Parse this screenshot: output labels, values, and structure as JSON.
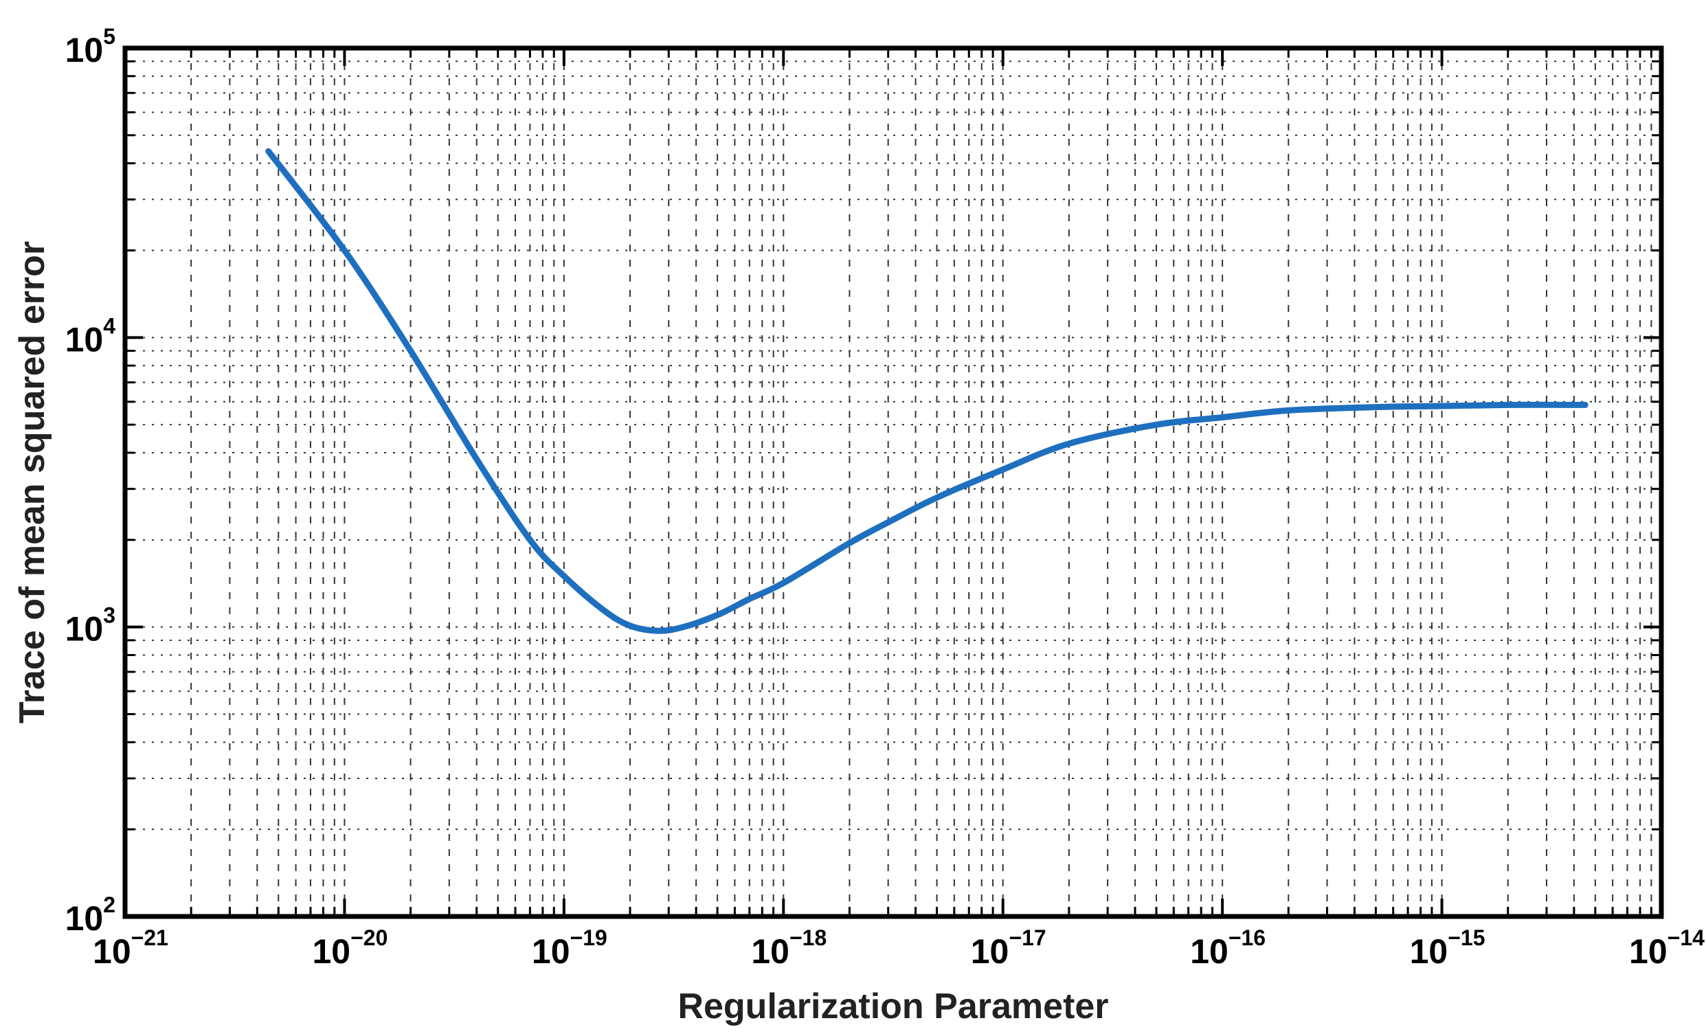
{
  "chart_data": {
    "type": "line",
    "title": "",
    "xlabel": "Regularization Parameter",
    "ylabel": "Trace of mean squared error",
    "xscale": "log",
    "yscale": "log",
    "xlim": [
      1e-21,
      1e-14
    ],
    "ylim": [
      100,
      100000
    ],
    "grid": true,
    "x_ticks": [
      {
        "exp": "-21",
        "value": 1e-21
      },
      {
        "exp": "-20",
        "value": 1e-20
      },
      {
        "exp": "-19",
        "value": 1e-19
      },
      {
        "exp": "-18",
        "value": 1e-18
      },
      {
        "exp": "-17",
        "value": 1e-17
      },
      {
        "exp": "-16",
        "value": 1e-16
      },
      {
        "exp": "-15",
        "value": 1e-15
      },
      {
        "exp": "-14",
        "value": 1e-14
      }
    ],
    "y_ticks": [
      {
        "exp": "2",
        "value": 100
      },
      {
        "exp": "3",
        "value": 1000
      },
      {
        "exp": "4",
        "value": 10000
      },
      {
        "exp": "5",
        "value": 100000
      }
    ],
    "series": [
      {
        "color": "#1f6fbf",
        "x": [
          4.5e-21,
          1e-20,
          2e-20,
          4e-20,
          7e-20,
          1e-19,
          1.5e-19,
          2e-19,
          2.7e-19,
          3.5e-19,
          5e-19,
          7e-19,
          1e-18,
          2e-18,
          3e-18,
          5e-18,
          1e-17,
          2e-17,
          5e-17,
          1e-16,
          2e-16,
          5e-16,
          1e-15,
          2e-15,
          4.5e-15
        ],
        "y": [
          44000,
          20000,
          9000,
          3800,
          2000,
          1500,
          1150,
          1010,
          970,
          1000,
          1100,
          1250,
          1420,
          1950,
          2300,
          2800,
          3500,
          4300,
          5000,
          5300,
          5600,
          5750,
          5800,
          5850,
          5850
        ]
      }
    ]
  }
}
